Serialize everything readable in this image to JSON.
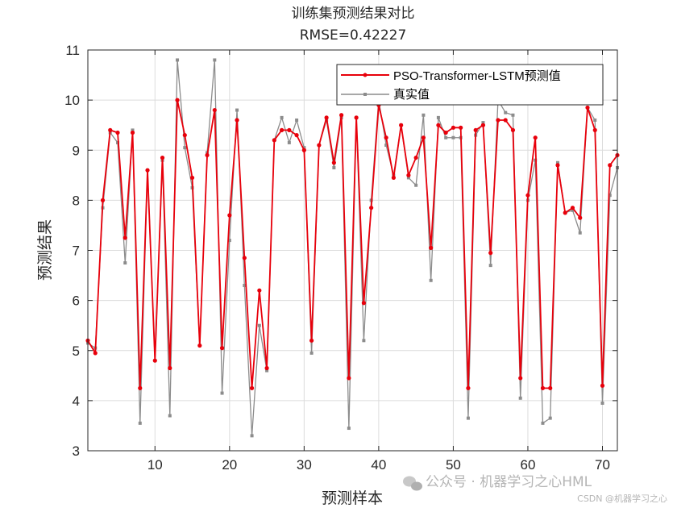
{
  "chart_data": {
    "type": "line",
    "title": "训练集预测结果对比",
    "subtitle": "RMSE=0.42227",
    "xlabel": "预测样本",
    "ylabel": "预测结果",
    "xlim": [
      1,
      72
    ],
    "ylim": [
      3,
      11
    ],
    "xticks": [
      10,
      20,
      30,
      40,
      50,
      60,
      70
    ],
    "yticks": [
      3,
      4,
      5,
      6,
      7,
      8,
      9,
      10,
      11
    ],
    "grid": true,
    "legend_position": "top-right",
    "x": [
      1,
      2,
      3,
      4,
      5,
      6,
      7,
      8,
      9,
      10,
      11,
      12,
      13,
      14,
      15,
      16,
      17,
      18,
      19,
      20,
      21,
      22,
      23,
      24,
      25,
      26,
      27,
      28,
      29,
      30,
      31,
      32,
      33,
      34,
      35,
      36,
      37,
      38,
      39,
      40,
      41,
      42,
      43,
      44,
      45,
      46,
      47,
      48,
      49,
      50,
      51,
      52,
      53,
      54,
      55,
      56,
      57,
      58,
      59,
      60,
      61,
      62,
      63,
      64,
      65,
      66,
      67,
      68,
      69,
      70,
      71,
      72
    ],
    "series": [
      {
        "name": "PSO-Transformer-LSTM预测值",
        "color": "#e8000b",
        "values": [
          5.2,
          4.95,
          8.0,
          9.4,
          9.35,
          7.25,
          9.35,
          4.25,
          8.6,
          4.8,
          8.85,
          4.65,
          10.0,
          9.3,
          8.45,
          5.1,
          8.9,
          9.8,
          5.05,
          7.7,
          9.6,
          6.85,
          4.25,
          6.2,
          4.65,
          9.2,
          9.4,
          9.4,
          9.3,
          9.0,
          5.2,
          9.1,
          9.65,
          8.75,
          9.7,
          4.45,
          9.65,
          5.95,
          7.85,
          9.9,
          9.25,
          8.45,
          9.5,
          8.5,
          8.85,
          9.25,
          7.05,
          9.5,
          9.35,
          9.45,
          9.45,
          4.25,
          9.4,
          9.5,
          6.95,
          9.6,
          9.6,
          9.4,
          4.45,
          8.1,
          9.25,
          4.25,
          4.25,
          8.7,
          7.75,
          7.85,
          7.65,
          9.85,
          9.4,
          4.3,
          8.7,
          8.9
        ]
      },
      {
        "name": "真实值",
        "color": "#8c8c8c",
        "values": [
          5.15,
          5.05,
          7.85,
          9.35,
          9.15,
          6.75,
          9.4,
          3.55,
          8.6,
          4.8,
          8.8,
          3.7,
          10.8,
          9.05,
          8.25,
          5.1,
          8.95,
          10.8,
          4.15,
          7.2,
          9.8,
          6.3,
          3.3,
          5.5,
          4.6,
          9.2,
          9.65,
          9.15,
          9.6,
          9.05,
          4.95,
          9.1,
          9.6,
          8.65,
          9.65,
          3.45,
          9.65,
          5.2,
          8.0,
          10.0,
          9.1,
          8.5,
          9.5,
          8.45,
          8.3,
          9.7,
          6.4,
          9.65,
          9.25,
          9.25,
          9.25,
          3.65,
          9.3,
          9.55,
          6.7,
          10.0,
          9.75,
          9.7,
          4.05,
          8.0,
          8.8,
          3.55,
          3.65,
          8.75,
          7.75,
          7.8,
          7.35,
          9.85,
          9.6,
          3.95,
          8.1,
          8.65
        ]
      }
    ]
  },
  "watermark": {
    "wechat_text": "公众号 · 机器学习之心HML",
    "csdn_text": "CSDN @机器学习之心"
  }
}
